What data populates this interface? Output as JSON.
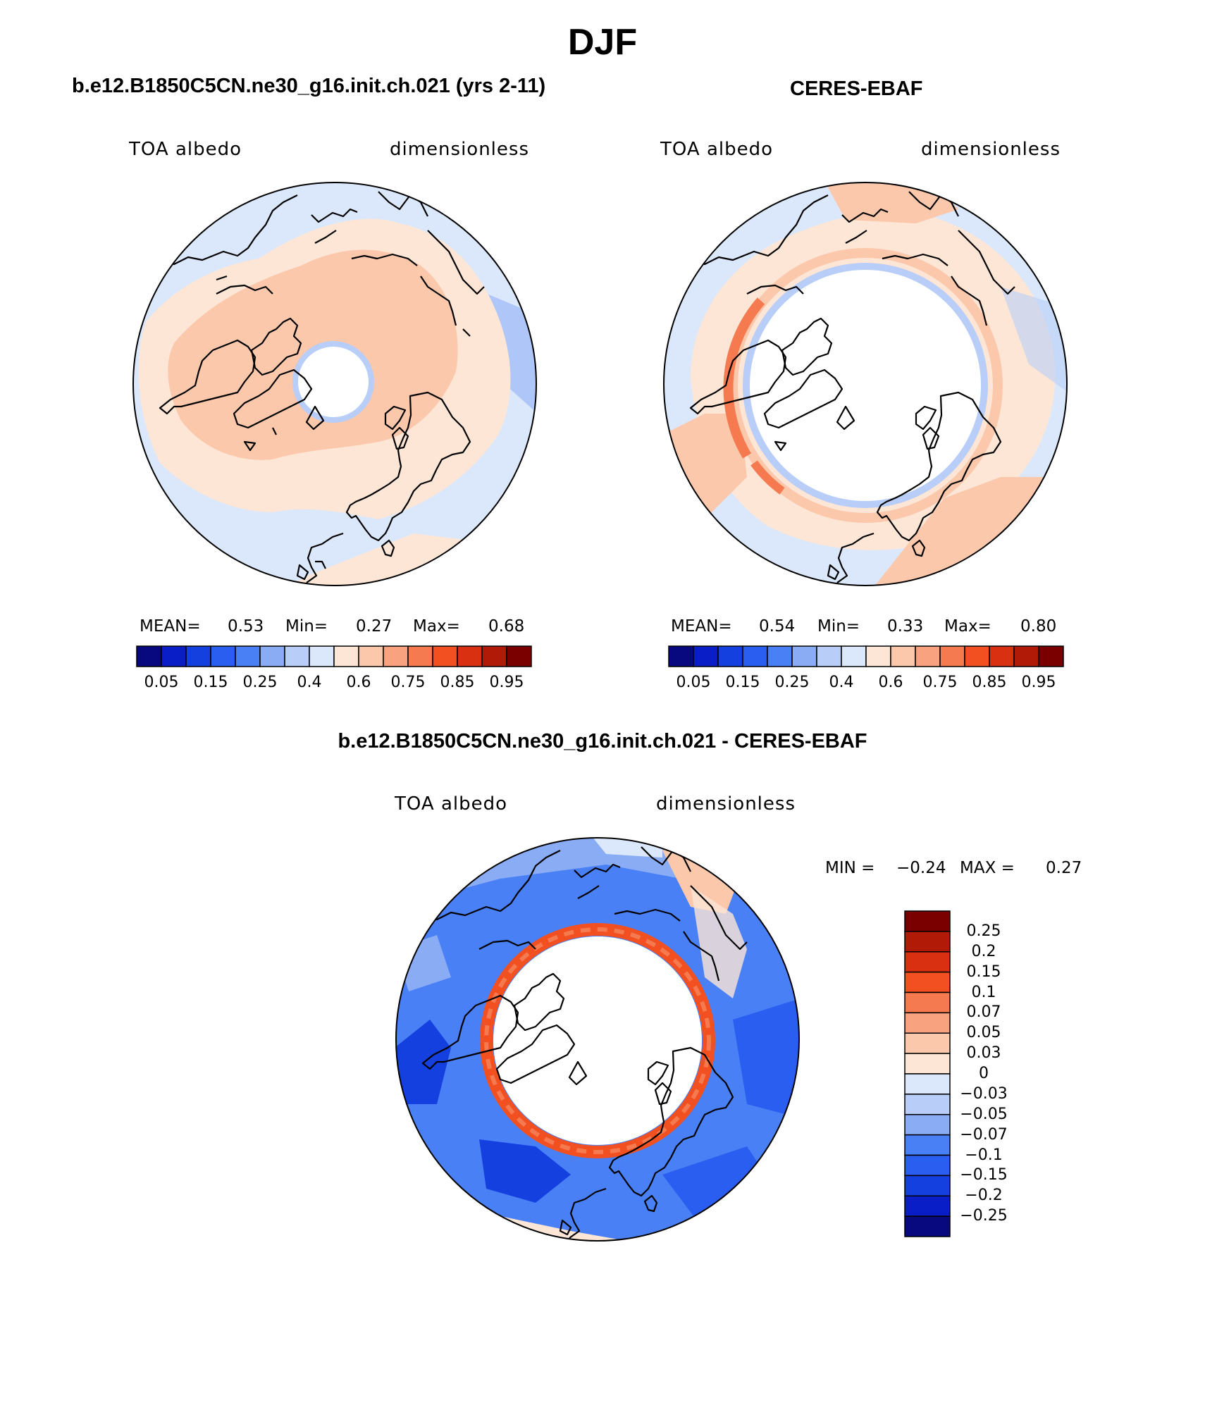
{
  "page_title": "DJF",
  "panels": [
    {
      "id": "model",
      "title": "b.e12.B1850C5CN.ne30_g16.init.ch.021 (yrs 2-11)",
      "left_label": "TOA albedo",
      "right_label": "dimensionless",
      "stats": {
        "mean_label": "MEAN=",
        "mean": "0.53",
        "min_label": "Min=",
        "min": "0.27",
        "max_label": "Max=",
        "max": "0.68"
      },
      "colorbar_labels": [
        "0.05",
        "0.15",
        "0.25",
        "0.4",
        "0.6",
        "0.75",
        "0.85",
        "0.95"
      ]
    },
    {
      "id": "obs",
      "title": "CERES-EBAF",
      "left_label": "TOA albedo",
      "right_label": "dimensionless",
      "stats": {
        "mean_label": "MEAN=",
        "mean": "0.54",
        "min_label": "Min=",
        "min": "0.33",
        "max_label": "Max=",
        "max": "0.80"
      },
      "colorbar_labels": [
        "0.05",
        "0.15",
        "0.25",
        "0.4",
        "0.6",
        "0.75",
        "0.85",
        "0.95"
      ]
    },
    {
      "id": "diff",
      "title": "b.e12.B1850C5CN.ne30_g16.init.ch.021 - CERES-EBAF",
      "left_label": "TOA albedo",
      "right_label": "dimensionless",
      "stats": {
        "min_label": "MIN =",
        "min": "−0.24",
        "max_label": "MAX =",
        "max": "0.27"
      },
      "colorbar_labels": [
        "0.25",
        "0.2",
        "0.15",
        "0.1",
        "0.07",
        "0.05",
        "0.03",
        "0",
        "−0.03",
        "−0.05",
        "−0.07",
        "−0.1",
        "−0.15",
        "−0.2",
        "−0.25"
      ]
    }
  ],
  "colors": {
    "abs_palette": [
      "#08087f",
      "#0a1ec8",
      "#1440e0",
      "#2a5ef0",
      "#4a80f5",
      "#8aacf5",
      "#b8cef8",
      "#dbe8fb",
      "#fde6d6",
      "#fbc8ac",
      "#f8a280",
      "#f57a50",
      "#f25020",
      "#d83010",
      "#b01a06",
      "#7a0000"
    ],
    "diff_palette": [
      "#7a0000",
      "#b01a06",
      "#d83010",
      "#f25020",
      "#f57a50",
      "#f8a280",
      "#fbc8ac",
      "#fde6d6",
      "#dbe8fb",
      "#b8cef8",
      "#8aacf5",
      "#4a80f5",
      "#2a5ef0",
      "#1440e0",
      "#0a1ec8",
      "#08087f"
    ]
  },
  "chart_data": [
    {
      "type": "heatmap",
      "title": "b.e12.B1850C5CN.ne30_g16.init.ch.021 (yrs 2-11)",
      "variable": "TOA albedo",
      "units": "dimensionless",
      "projection": "north polar stereographic",
      "mean": 0.53,
      "min": 0.27,
      "max": 0.68,
      "contour_levels": [
        0.05,
        0.1,
        0.15,
        0.2,
        0.25,
        0.3,
        0.35,
        0.4,
        0.5,
        0.6,
        0.65,
        0.75,
        0.8,
        0.85,
        0.9,
        0.95
      ]
    },
    {
      "type": "heatmap",
      "title": "CERES-EBAF",
      "variable": "TOA albedo",
      "units": "dimensionless",
      "projection": "north polar stereographic",
      "mean": 0.54,
      "min": 0.33,
      "max": 0.8,
      "contour_levels": [
        0.05,
        0.1,
        0.15,
        0.2,
        0.25,
        0.3,
        0.35,
        0.4,
        0.5,
        0.6,
        0.65,
        0.75,
        0.8,
        0.85,
        0.9,
        0.95
      ]
    },
    {
      "type": "heatmap",
      "title": "b.e12.B1850C5CN.ne30_g16.init.ch.021 - CERES-EBAF",
      "variable": "TOA albedo",
      "units": "dimensionless",
      "projection": "north polar stereographic",
      "min": -0.24,
      "max": 0.27,
      "contour_levels": [
        0.25,
        0.2,
        0.15,
        0.1,
        0.07,
        0.05,
        0.03,
        0,
        -0.03,
        -0.05,
        -0.07,
        -0.1,
        -0.15,
        -0.2,
        -0.25
      ]
    }
  ]
}
